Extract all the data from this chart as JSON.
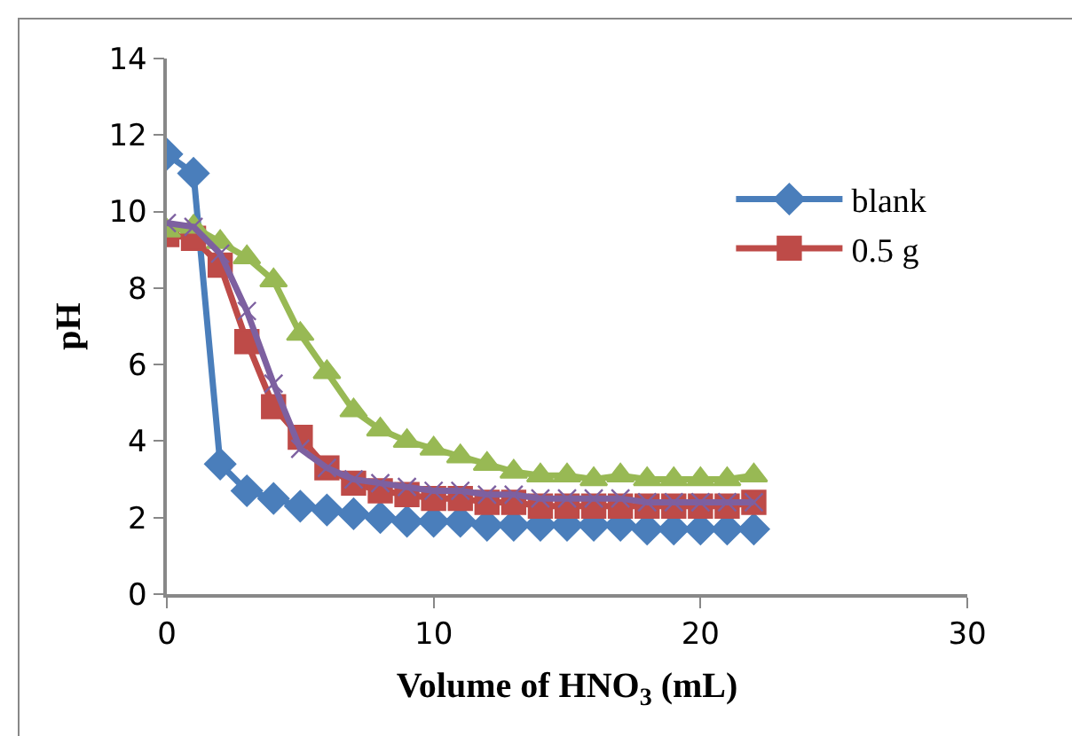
{
  "chart_data": {
    "type": "line",
    "xlabel": "Volume of HNO$_{3}$ (mL)",
    "ylabel": "pH",
    "x": [
      0,
      1,
      2,
      3,
      4,
      5,
      6,
      7,
      8,
      9,
      10,
      11,
      12,
      13,
      14,
      15,
      16,
      17,
      18,
      19,
      20,
      21,
      22
    ],
    "xlim": [
      0,
      30
    ],
    "xticks": [
      0,
      10,
      20,
      30
    ],
    "ylim": [
      0,
      14
    ],
    "yticks": [
      0,
      2,
      4,
      6,
      8,
      10,
      12,
      14
    ],
    "grid": false,
    "legend": "top right",
    "line_style": "solid",
    "series": [
      {
        "name": "blank",
        "color": "#4a7ebb",
        "marker": "diamond",
        "values": [
          11.5,
          11.0,
          3.4,
          2.7,
          2.5,
          2.3,
          2.2,
          2.1,
          2.0,
          1.9,
          1.9,
          1.9,
          1.8,
          1.8,
          1.8,
          1.8,
          1.8,
          1.8,
          1.7,
          1.7,
          1.7,
          1.7,
          1.7
        ]
      },
      {
        "name": "0.5 g",
        "color": "#be4b48",
        "marker": "square",
        "values": [
          9.4,
          9.3,
          8.6,
          6.6,
          4.9,
          4.1,
          3.3,
          2.9,
          2.7,
          2.6,
          2.5,
          2.5,
          2.4,
          2.4,
          2.3,
          2.3,
          2.3,
          2.3,
          2.3,
          2.3,
          2.3,
          2.3,
          2.4
        ]
      },
      {
        "color": "#98b954",
        "marker": "triangle",
        "values": [
          9.5,
          9.6,
          9.2,
          8.8,
          8.2,
          6.8,
          5.8,
          4.8,
          4.3,
          4.0,
          3.8,
          3.6,
          3.4,
          3.2,
          3.1,
          3.1,
          3.0,
          3.1,
          3.0,
          3.0,
          3.0,
          3.0,
          3.1
        ]
      },
      {
        "color": "#7d60a0",
        "marker": "cross",
        "values": [
          9.7,
          9.6,
          8.9,
          7.4,
          5.5,
          3.8,
          3.3,
          3.0,
          2.9,
          2.8,
          2.7,
          2.7,
          2.6,
          2.6,
          2.5,
          2.5,
          2.5,
          2.5,
          2.4,
          2.4,
          2.4,
          2.4,
          2.4
        ]
      }
    ]
  }
}
